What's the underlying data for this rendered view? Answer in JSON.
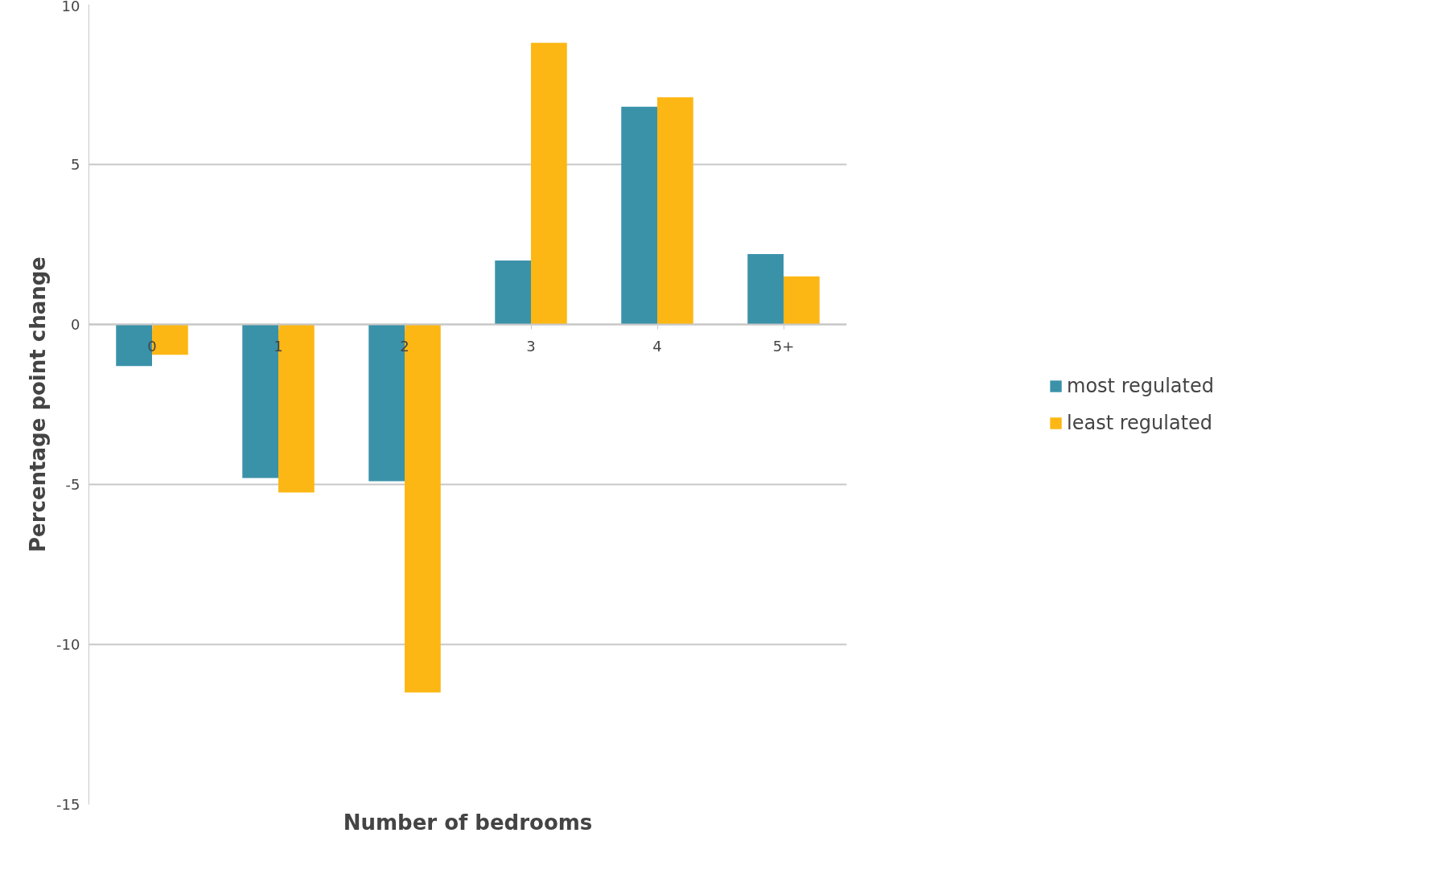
{
  "chart_data": {
    "type": "bar",
    "xlabel": "Number of bedrooms",
    "ylabel": "Percentage point change",
    "categories": [
      "0",
      "1",
      "2",
      "3",
      "4",
      "5+"
    ],
    "series": [
      {
        "name": "most regulated",
        "color": "#3a92a9",
        "values": [
          -1.3,
          -4.8,
          -4.9,
          2.0,
          6.8,
          2.2
        ]
      },
      {
        "name": "least regulated",
        "color": "#fdb714",
        "values": [
          -0.95,
          -5.25,
          -11.5,
          8.8,
          7.1,
          1.5
        ]
      }
    ],
    "ylim": [
      -15,
      10
    ],
    "yticks": [
      -15,
      -10,
      -5,
      0,
      5,
      10
    ],
    "grid": "y",
    "legend": "right"
  }
}
